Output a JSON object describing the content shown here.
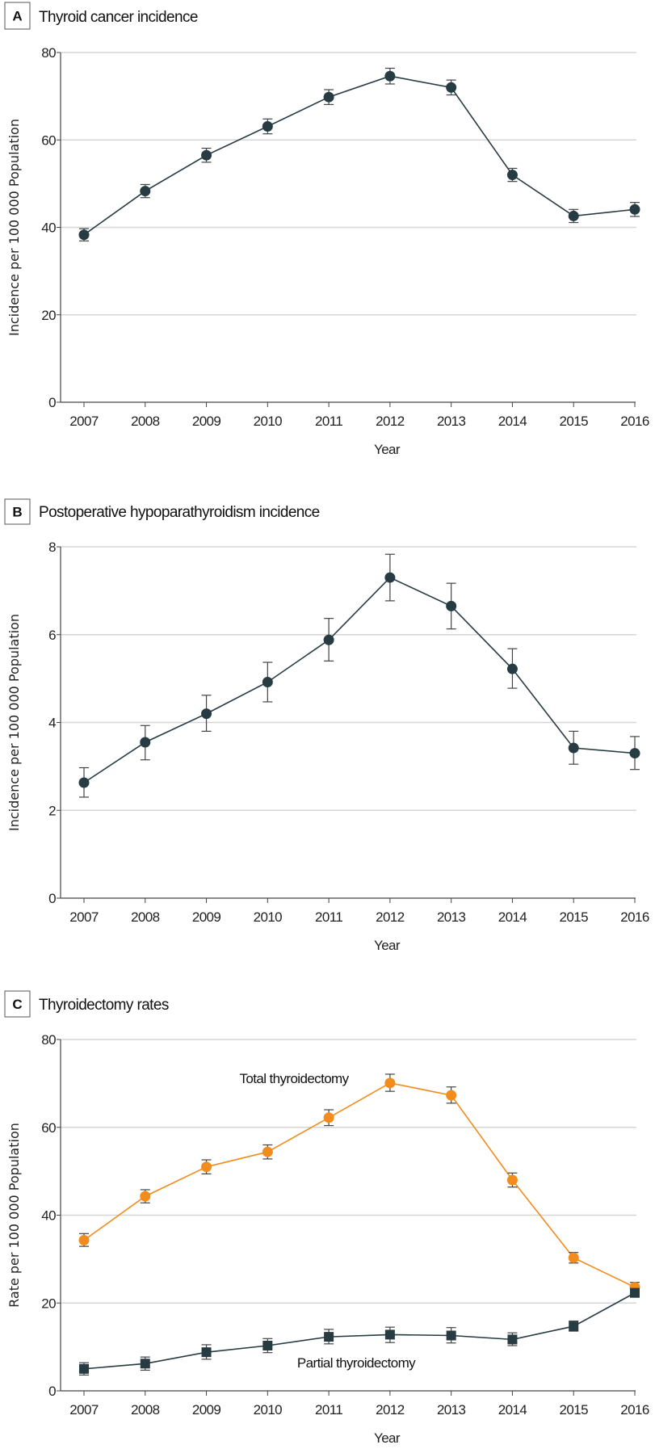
{
  "chart_data": [
    {
      "type": "line",
      "panel": "A",
      "title": "Thyroid cancer incidence",
      "xlabel": "Year",
      "ylabel": "Incidence per 100 000 Population",
      "x": [
        2007,
        2008,
        2009,
        2010,
        2011,
        2012,
        2013,
        2014,
        2015,
        2016
      ],
      "ylim": [
        0,
        80
      ],
      "yticks": [
        0,
        20,
        40,
        60,
        80
      ],
      "grid": true,
      "series": [
        {
          "name": "Thyroid cancer incidence",
          "marker": "circle",
          "color": "#263b42",
          "values": [
            38.3,
            48.3,
            56.5,
            63.1,
            69.8,
            74.6,
            72.0,
            52.0,
            42.6,
            44.1
          ],
          "lower": [
            36.9,
            46.8,
            54.9,
            61.4,
            68.1,
            72.8,
            70.3,
            50.5,
            41.1,
            42.5
          ],
          "upper": [
            39.7,
            49.8,
            58.1,
            64.8,
            71.5,
            76.4,
            73.7,
            53.5,
            44.1,
            45.7
          ]
        }
      ]
    },
    {
      "type": "line",
      "panel": "B",
      "title": "Postoperative hypoparathyroidism incidence",
      "xlabel": "Year",
      "ylabel": "Incidence per 100 000 Population",
      "x": [
        2007,
        2008,
        2009,
        2010,
        2011,
        2012,
        2013,
        2014,
        2015,
        2016
      ],
      "ylim": [
        0,
        8
      ],
      "yticks": [
        0,
        2,
        4,
        6,
        8
      ],
      "grid": true,
      "series": [
        {
          "name": "Postoperative hypoparathyroidism incidence",
          "marker": "circle",
          "color": "#263b42",
          "values": [
            2.63,
            3.55,
            4.2,
            4.92,
            5.88,
            7.3,
            6.65,
            5.22,
            3.42,
            3.3
          ],
          "lower": [
            2.3,
            3.15,
            3.8,
            4.47,
            5.4,
            6.77,
            6.13,
            4.78,
            3.05,
            2.93
          ],
          "upper": [
            2.97,
            3.93,
            4.62,
            5.37,
            6.37,
            7.83,
            7.17,
            5.68,
            3.8,
            3.68
          ]
        }
      ]
    },
    {
      "type": "line",
      "panel": "C",
      "title": "Thyroidectomy rates",
      "xlabel": "Year",
      "ylabel": "Rate per 100 000 Population",
      "x": [
        2007,
        2008,
        2009,
        2010,
        2011,
        2012,
        2013,
        2014,
        2015,
        2016
      ],
      "ylim": [
        0,
        80
      ],
      "yticks": [
        0,
        20,
        40,
        60,
        80
      ],
      "grid": true,
      "series": [
        {
          "name": "Total thyroidectomy",
          "marker": "circle",
          "color": "#f28c1c",
          "values": [
            34.3,
            44.3,
            51.0,
            54.4,
            62.2,
            70.1,
            67.3,
            48.0,
            30.3,
            23.6
          ],
          "lower": [
            32.9,
            42.8,
            49.4,
            52.8,
            60.4,
            68.2,
            65.5,
            46.4,
            29.1,
            22.6
          ],
          "upper": [
            35.8,
            45.8,
            52.6,
            56.0,
            64.0,
            72.1,
            69.2,
            49.6,
            31.5,
            24.7
          ]
        },
        {
          "name": "Partial thyroidectomy",
          "marker": "square",
          "color": "#263b42",
          "values": [
            5.0,
            6.2,
            8.8,
            10.3,
            12.3,
            12.8,
            12.6,
            11.7,
            14.7,
            22.3
          ],
          "lower": [
            3.6,
            4.7,
            7.2,
            8.7,
            10.7,
            11.0,
            10.9,
            10.3,
            13.6,
            21.4
          ],
          "upper": [
            6.4,
            7.7,
            10.5,
            11.9,
            14.0,
            14.5,
            14.4,
            13.2,
            15.9,
            23.3
          ]
        }
      ]
    }
  ]
}
